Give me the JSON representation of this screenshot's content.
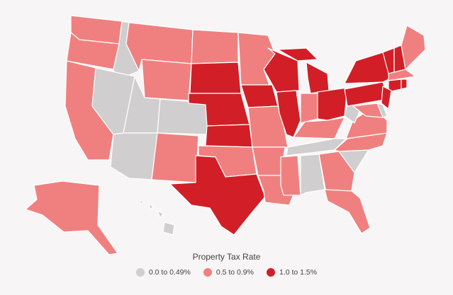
{
  "legend": {
    "title": "Property Tax Rate",
    "items": [
      {
        "label": "0.0 to 0.49%",
        "color": "#d0cece"
      },
      {
        "label": "0.5 to 0.9%",
        "color": "#f08080"
      },
      {
        "label": "1.0 to 1.5%",
        "color": "#d21f27"
      }
    ]
  },
  "states": [
    {
      "id": "WA",
      "cls": 1
    },
    {
      "id": "OR",
      "cls": 1
    },
    {
      "id": "CA",
      "cls": 1
    },
    {
      "id": "ID",
      "cls": 0
    },
    {
      "id": "NV",
      "cls": 0
    },
    {
      "id": "MT",
      "cls": 1
    },
    {
      "id": "WY",
      "cls": 1
    },
    {
      "id": "UT",
      "cls": 0
    },
    {
      "id": "AZ",
      "cls": 0
    },
    {
      "id": "CO",
      "cls": 0
    },
    {
      "id": "NM",
      "cls": 1
    },
    {
      "id": "ND",
      "cls": 1
    },
    {
      "id": "SD",
      "cls": 2
    },
    {
      "id": "NE",
      "cls": 2
    },
    {
      "id": "KS",
      "cls": 2
    },
    {
      "id": "OK",
      "cls": 1
    },
    {
      "id": "TX",
      "cls": 2
    },
    {
      "id": "MN",
      "cls": 1
    },
    {
      "id": "IA",
      "cls": 2
    },
    {
      "id": "MO",
      "cls": 1
    },
    {
      "id": "AR",
      "cls": 1
    },
    {
      "id": "LA",
      "cls": 1
    },
    {
      "id": "WI",
      "cls": 2
    },
    {
      "id": "IL",
      "cls": 2
    },
    {
      "id": "MI",
      "cls": 2
    },
    {
      "id": "IN",
      "cls": 1
    },
    {
      "id": "OH",
      "cls": 2
    },
    {
      "id": "KY",
      "cls": 1
    },
    {
      "id": "TN",
      "cls": 0
    },
    {
      "id": "MS",
      "cls": 1
    },
    {
      "id": "AL",
      "cls": 0
    },
    {
      "id": "GA",
      "cls": 1
    },
    {
      "id": "FL",
      "cls": 1
    },
    {
      "id": "SC",
      "cls": 0
    },
    {
      "id": "NC",
      "cls": 1
    },
    {
      "id": "VA",
      "cls": 1
    },
    {
      "id": "WV",
      "cls": 0
    },
    {
      "id": "PA",
      "cls": 2
    },
    {
      "id": "NY",
      "cls": 2
    },
    {
      "id": "VT",
      "cls": 2
    },
    {
      "id": "NH",
      "cls": 2
    },
    {
      "id": "ME",
      "cls": 1
    },
    {
      "id": "MA",
      "cls": 1
    },
    {
      "id": "CT",
      "cls": 2
    },
    {
      "id": "RI",
      "cls": 2
    },
    {
      "id": "NJ",
      "cls": 2
    },
    {
      "id": "MD",
      "cls": 1
    },
    {
      "id": "DE",
      "cls": 0
    },
    {
      "id": "AK",
      "cls": 1
    },
    {
      "id": "HI",
      "cls": 0
    }
  ]
}
